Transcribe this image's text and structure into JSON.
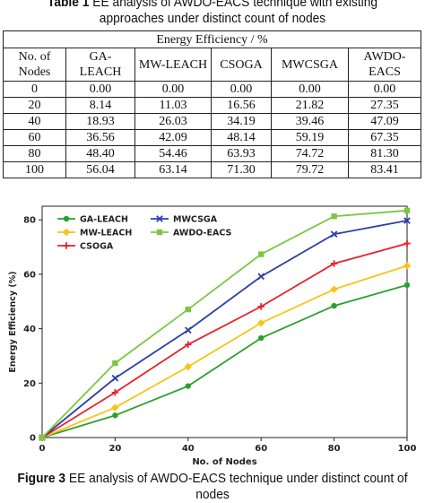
{
  "table": {
    "caption_label": "Table 1",
    "caption_text": " EE analysis of AWDO-EACS technique with existing approaches under distinct count of nodes",
    "span_header": "Energy Efficiency / %",
    "columns": [
      "No. of Nodes",
      "GA-LEACH",
      "MW-LEACH",
      "CSOGA",
      "MWCSGA",
      "AWDO-EACS"
    ],
    "rows": [
      [
        "0",
        "0.00",
        "0.00",
        "0.00",
        "0.00",
        "0.00"
      ],
      [
        "20",
        "8.14",
        "11.03",
        "16.56",
        "21.82",
        "27.35"
      ],
      [
        "40",
        "18.93",
        "26.03",
        "34.19",
        "39.46",
        "47.09"
      ],
      [
        "60",
        "36.56",
        "42.09",
        "48.14",
        "59.19",
        "67.35"
      ],
      [
        "80",
        "48.40",
        "54.46",
        "63.93",
        "74.72",
        "81.30"
      ],
      [
        "100",
        "56.04",
        "63.14",
        "71.30",
        "79.72",
        "83.41"
      ]
    ]
  },
  "figure": {
    "caption_label": "Figure 3",
    "caption_text": " EE analysis of AWDO-EACS technique under distinct count of nodes"
  },
  "chart_data": {
    "type": "line",
    "title": "",
    "xlabel": "No. of Nodes",
    "ylabel": "Energy Efficiency (%)",
    "x": [
      0,
      20,
      40,
      60,
      80,
      100
    ],
    "xlim": [
      0,
      100
    ],
    "ylim": [
      0,
      85
    ],
    "xticks": [
      "0",
      "20",
      "40",
      "60",
      "80",
      "100"
    ],
    "yticks": [
      "0",
      "20",
      "40",
      "60",
      "80"
    ],
    "grid": false,
    "legend_placement": "top-left",
    "series": [
      {
        "name": "GA-LEACH",
        "color": "#2ca02c",
        "marker": "circle",
        "values": [
          0.0,
          8.14,
          18.93,
          36.56,
          48.4,
          56.04
        ]
      },
      {
        "name": "MW-LEACH",
        "color": "#f5c518",
        "marker": "diamond",
        "values": [
          0.0,
          11.03,
          26.03,
          42.09,
          54.46,
          63.14
        ]
      },
      {
        "name": "CSOGA",
        "color": "#e8202a",
        "marker": "plus",
        "values": [
          0.0,
          16.56,
          34.19,
          48.14,
          63.93,
          71.3
        ]
      },
      {
        "name": "MWCSGA",
        "color": "#2b3fa8",
        "marker": "x",
        "values": [
          0.0,
          21.82,
          39.46,
          59.19,
          74.72,
          79.72
        ]
      },
      {
        "name": "AWDO-EACS",
        "color": "#7cc742",
        "marker": "square",
        "values": [
          0.0,
          27.35,
          47.09,
          67.35,
          81.3,
          83.41
        ]
      }
    ]
  }
}
